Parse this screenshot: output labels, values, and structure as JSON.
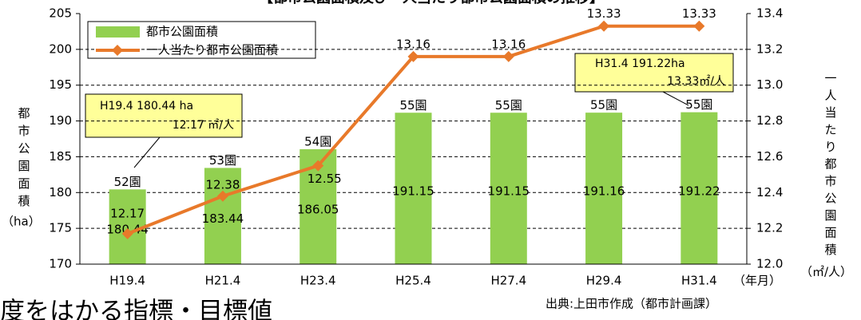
{
  "chart_data": {
    "type": "bar_line",
    "title": "【都市公園面積及び一人当たり都市公園面積の推移】",
    "categories": [
      "H19.4",
      "H21.4",
      "H23.4",
      "H25.4",
      "H27.4",
      "H29.4",
      "H31.4"
    ],
    "x_unit": "（年月）",
    "series": [
      {
        "name": "都市公園面積",
        "type": "bar",
        "color": "#92d050",
        "values": [
          180.44,
          183.44,
          186.05,
          191.15,
          191.15,
          191.16,
          191.22
        ],
        "park_counts": [
          "52園",
          "53園",
          "54園",
          "55園",
          "55園",
          "55園",
          "55園"
        ]
      },
      {
        "name": "一人当たり都市公園面積",
        "type": "line",
        "axis": "y2",
        "color": "#e8792a",
        "values": [
          12.17,
          12.38,
          12.55,
          13.16,
          13.16,
          13.33,
          13.33
        ]
      }
    ],
    "ylabel": "都市公園面積",
    "ylabel_unit": "（ha）",
    "y2label": "一人当たり都市公園面積",
    "y2label_unit": "（㎡/人）",
    "ylim": [
      170,
      205
    ],
    "yticks": [
      170,
      175,
      180,
      185,
      190,
      195,
      200,
      205
    ],
    "y2lim": [
      12,
      13.4
    ],
    "y2ticks": [
      {
        "value": 12,
        "label": "12.0"
      },
      12.2,
      12.4,
      12.6,
      12.8,
      {
        "value": 13,
        "label": "13.0"
      },
      13.2,
      13.4
    ],
    "grid": true,
    "callouts": [
      {
        "lines": [
          "H19.4  180.44 ha",
          "12.17 ㎡/人"
        ]
      },
      {
        "lines": [
          "H31.4  191.22ha",
          "13.33㎡/人"
        ]
      }
    ],
    "source": "出典:上田市作成（都市計画課）",
    "footer_heading": "度をはかる指標・目標値"
  }
}
